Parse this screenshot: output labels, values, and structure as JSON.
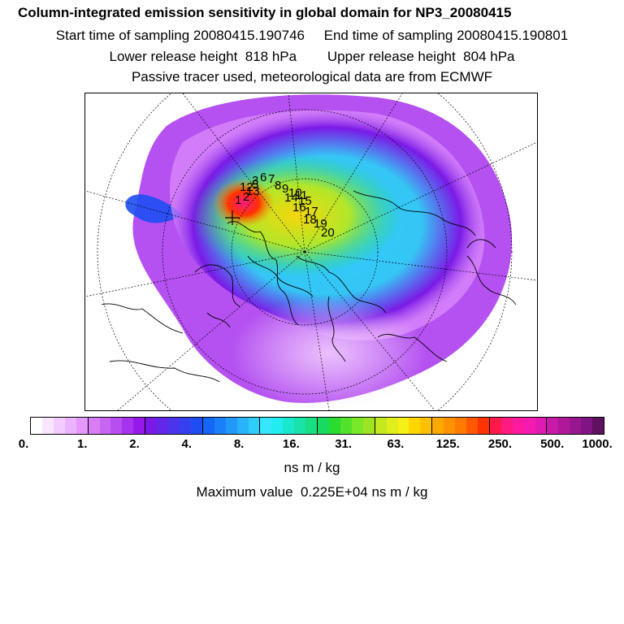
{
  "header": {
    "title": "Column-integrated emission sensitivity in global domain for NP3_20080415",
    "sampling": "Start time of sampling 20080415.190746     End time of sampling 20080415.190801",
    "release": "Lower release height  818 hPa        Upper release height  804 hPa",
    "tracer": "Passive tracer used, meteorological data are from ECMWF"
  },
  "map": {
    "projection": "polar stereographic (north pole)",
    "trajectory_labels": [
      "1",
      "2",
      "3",
      "5",
      "6",
      "7",
      "8",
      "9",
      "10",
      "11",
      "12",
      "13",
      "14",
      "15",
      "16",
      "17",
      "18",
      "19",
      "20"
    ]
  },
  "legend": {
    "colors": [
      "#ffffff",
      "#f8e6ff",
      "#f2ccff",
      "#ebb3ff",
      "#e599ff",
      "#d77ef5",
      "#c866f2",
      "#b84df0",
      "#a833ee",
      "#9619ec",
      "#7a1ae6",
      "#6327e9",
      "#4c34ec",
      "#3541ef",
      "#1e4ef2",
      "#1466f5",
      "#1a80f7",
      "#2199f9",
      "#28b3fb",
      "#2ecdfd",
      "#35e6ff",
      "#22ecf0",
      "#19e8cc",
      "#19e3a8",
      "#19df84",
      "#19da60",
      "#2bdc2f",
      "#52e22b",
      "#78e827",
      "#9ee423",
      "#c4ea1f",
      "#e0ee1b",
      "#f5f017",
      "#ffd700",
      "#ffc000",
      "#ffa900",
      "#ff9200",
      "#ff7b00",
      "#ff5a00",
      "#ff3300",
      "#ff1a4a",
      "#ff1a80",
      "#ff1aa0",
      "#f51ab0",
      "#e01ab4",
      "#c81aa8",
      "#b0189c",
      "#981690",
      "#801484",
      "#601060"
    ],
    "ticks": [
      "0.",
      "1.",
      "2.",
      "4.",
      "8.",
      "16.",
      "31.",
      "63.",
      "125.",
      "250.",
      "500.",
      "1000."
    ],
    "units": "ns m / kg",
    "max_value": "Maximum value  0.225E+04 ns m / kg"
  }
}
